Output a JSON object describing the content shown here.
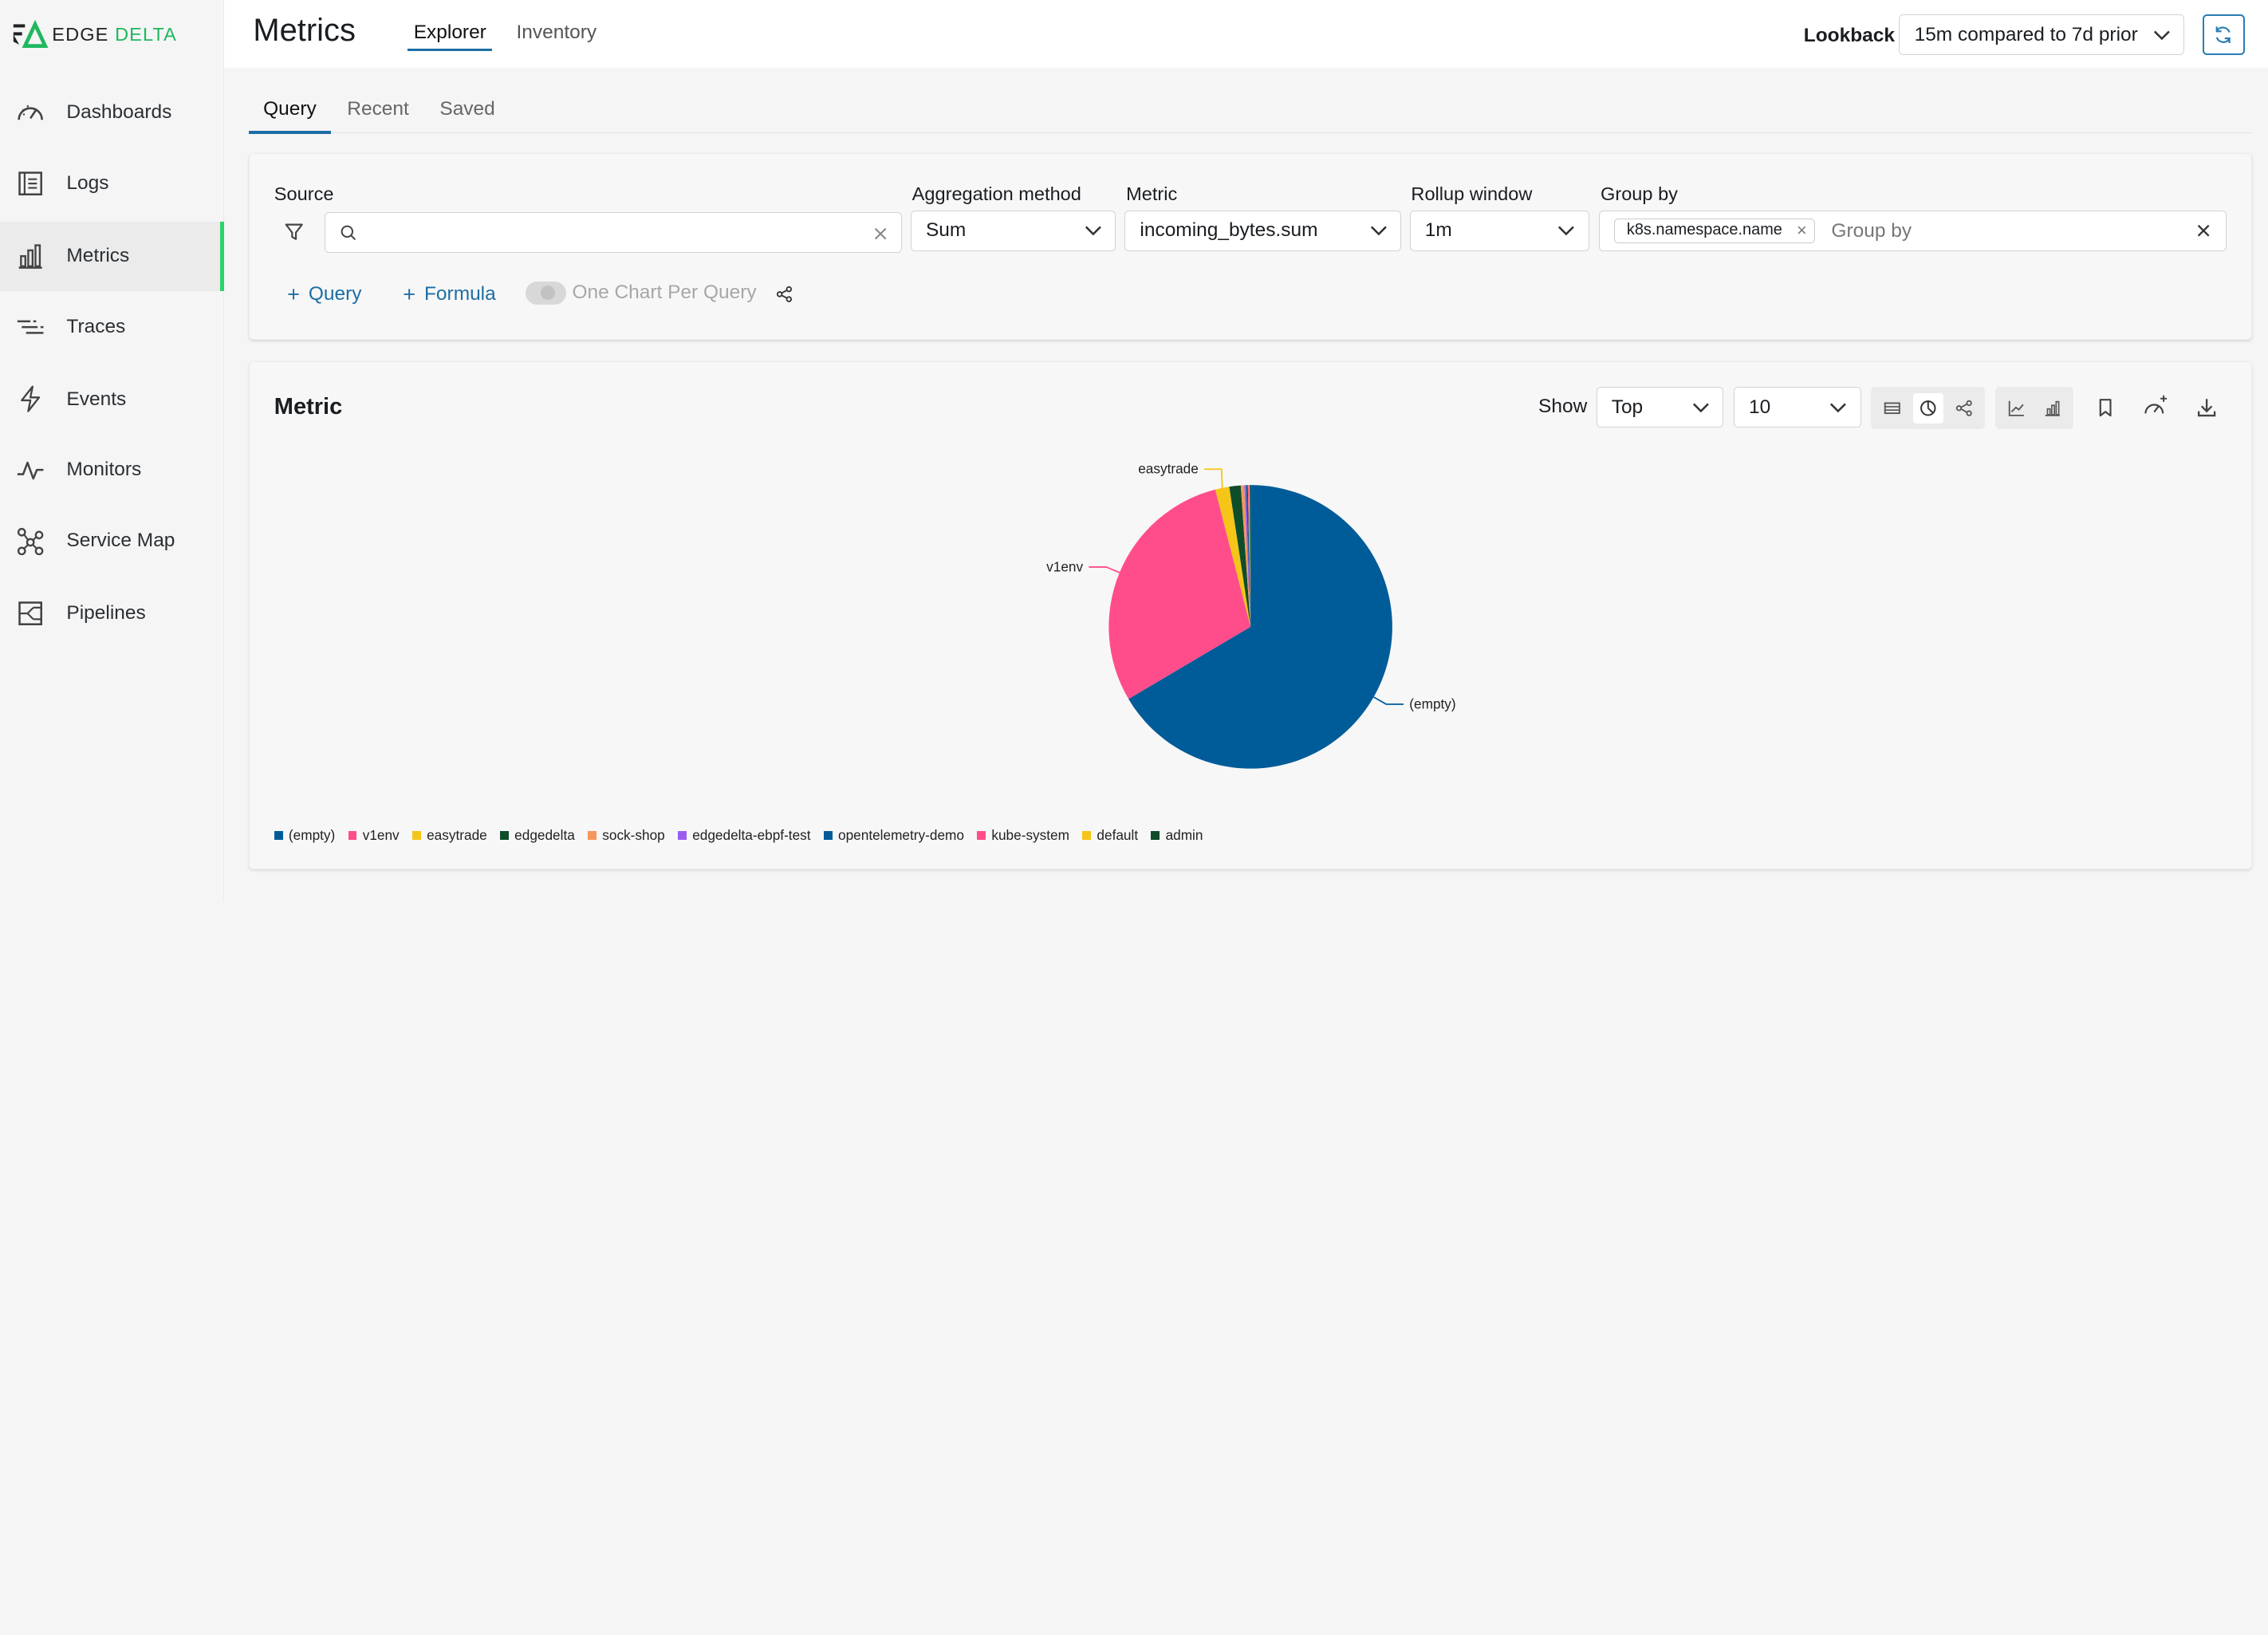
{
  "logo": {
    "part1": "EDGE",
    "part2": "DELTA"
  },
  "sidebar": {
    "items": [
      {
        "label": "Dashboards",
        "icon": "dashboard-gauge-icon",
        "active": false
      },
      {
        "label": "Logs",
        "icon": "logs-icon",
        "active": false
      },
      {
        "label": "Metrics",
        "icon": "bar-chart-icon",
        "active": true
      },
      {
        "label": "Traces",
        "icon": "traces-icon",
        "active": false
      },
      {
        "label": "Events",
        "icon": "lightning-icon",
        "active": false
      },
      {
        "label": "Monitors",
        "icon": "pulse-icon",
        "active": false
      },
      {
        "label": "Service Map",
        "icon": "service-map-icon",
        "active": false
      },
      {
        "label": "Pipelines",
        "icon": "pipelines-icon",
        "active": false
      }
    ]
  },
  "header": {
    "title": "Metrics",
    "tabs": [
      {
        "label": "Explorer",
        "active": true
      },
      {
        "label": "Inventory",
        "active": false
      }
    ],
    "lookback_label": "Lookback",
    "lookback_value": "15m compared to 7d prior"
  },
  "subtabs": [
    {
      "label": "Query",
      "active": true
    },
    {
      "label": "Recent",
      "active": false
    },
    {
      "label": "Saved",
      "active": false
    }
  ],
  "query": {
    "source_label": "Source",
    "source_value": "",
    "aggregation_label": "Aggregation method",
    "aggregation_value": "Sum",
    "metric_label": "Metric",
    "metric_value": "incoming_bytes.sum",
    "rollup_label": "Rollup window",
    "rollup_value": "1m",
    "groupby_label": "Group by",
    "groupby_chip": "k8s.namespace.name",
    "groupby_placeholder": "Group by",
    "add_query": "Query",
    "add_formula": "Formula",
    "one_chart_label": "One Chart Per Query"
  },
  "metric_panel": {
    "title": "Metric",
    "show_label": "Show",
    "show_value": "Top",
    "count_value": "10"
  },
  "chart_data": {
    "type": "pie",
    "title": "",
    "slices": [
      {
        "label": "(empty)",
        "value": 66.5,
        "color": "#005c99"
      },
      {
        "label": "v1env",
        "value": 29.5,
        "color": "#ff4d8b"
      },
      {
        "label": "easytrade",
        "value": 1.6,
        "color": "#f5c518"
      },
      {
        "label": "edgedelta",
        "value": 1.3,
        "color": "#0e4d2a"
      },
      {
        "label": "sock-shop",
        "value": 0.4,
        "color": "#f5965b"
      },
      {
        "label": "edgedelta-ebpf-test",
        "value": 0.2,
        "color": "#9a5cf0"
      },
      {
        "label": "opentelemetry-demo",
        "value": 0.2,
        "color": "#005c99"
      },
      {
        "label": "kube-system",
        "value": 0.1,
        "color": "#ff4d8b"
      },
      {
        "label": "default",
        "value": 0.1,
        "color": "#f5c518"
      },
      {
        "label": "admin",
        "value": 0.1,
        "color": "#0e4d2a"
      }
    ],
    "callouts": [
      "(empty)",
      "v1env",
      "easytrade"
    ],
    "legend_placement": "bottom-left"
  }
}
